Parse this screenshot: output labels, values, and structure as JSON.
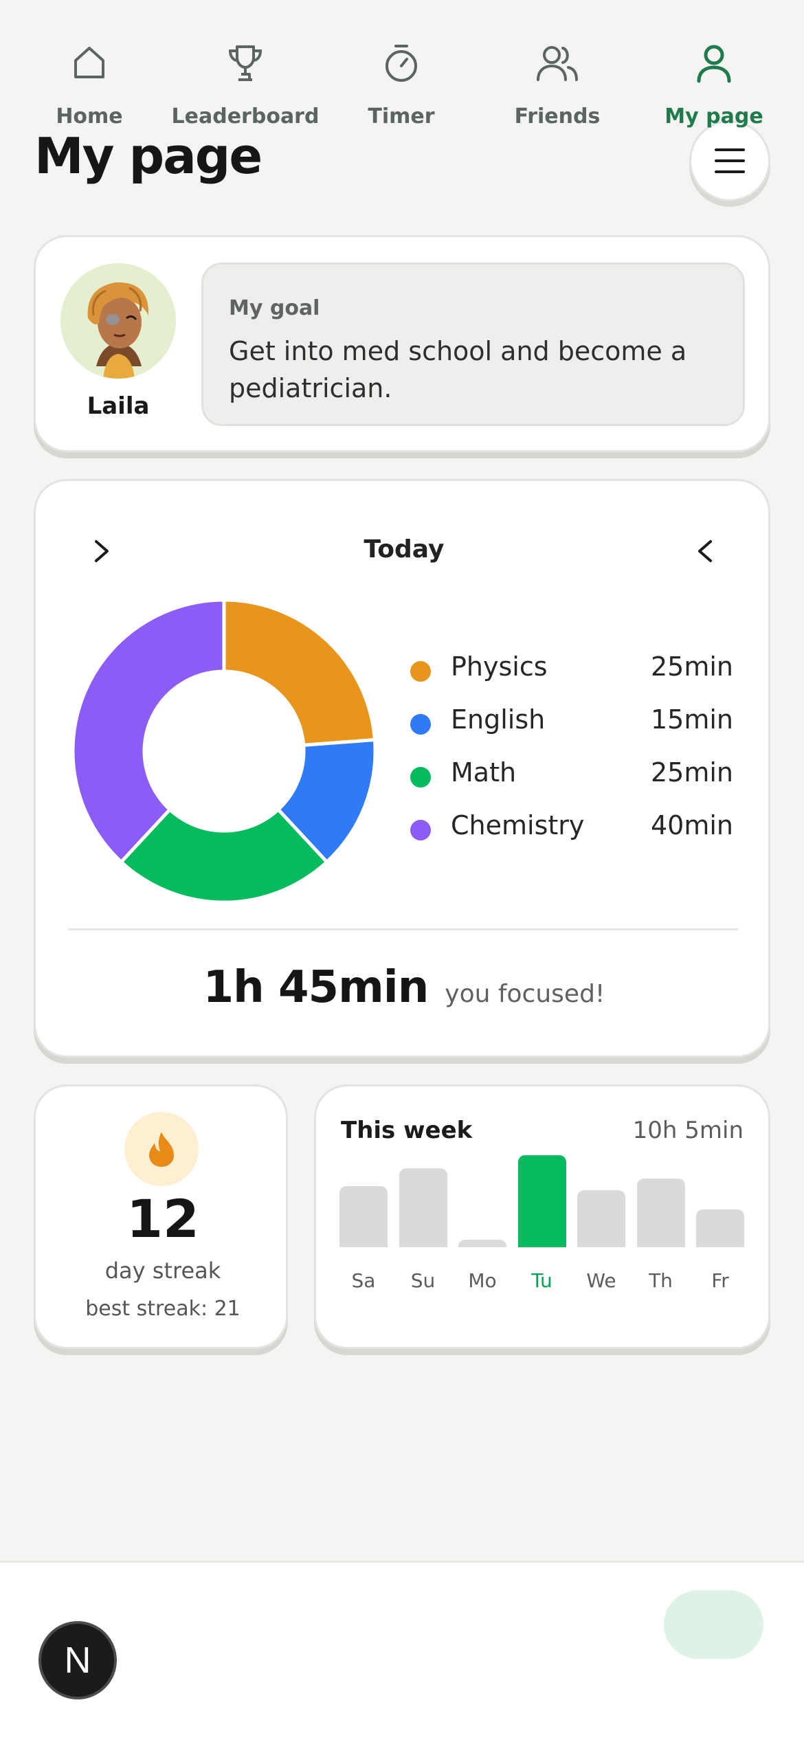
{
  "header": {
    "title": "My page",
    "menu_icon": "hamburger-icon"
  },
  "profile": {
    "name": "Laila",
    "goal_label": "My goal",
    "goal_text": "Get into med school and become a pediatrician."
  },
  "today": {
    "title": "Today",
    "total": "1h 45min",
    "caption": "you focused!",
    "subjects": [
      {
        "name": "Physics",
        "time": "25min",
        "minutes": 25,
        "color": "#e8951e"
      },
      {
        "name": "English",
        "time": "15min",
        "minutes": 15,
        "color": "#2f7bf5"
      },
      {
        "name": "Math",
        "time": "25min",
        "minutes": 25,
        "color": "#05bb5e"
      },
      {
        "name": "Chemistry",
        "time": "40min",
        "minutes": 40,
        "color": "#8b5cf6"
      }
    ]
  },
  "streak": {
    "count": "12",
    "label": "day streak",
    "best": "best streak: 21",
    "icon": "flame-icon"
  },
  "week": {
    "title": "This week",
    "total": "10h 5min",
    "days": [
      {
        "label": "Sa",
        "level": 0.42,
        "active": false
      },
      {
        "label": "Su",
        "level": 0.54,
        "active": false
      },
      {
        "label": "Mo",
        "level": 0.05,
        "active": false
      },
      {
        "label": "Tu",
        "level": 0.63,
        "active": true
      },
      {
        "label": "We",
        "level": 0.39,
        "active": false
      },
      {
        "label": "Th",
        "level": 0.47,
        "active": false
      },
      {
        "label": "Fr",
        "level": 0.26,
        "active": false
      }
    ]
  },
  "tabs": [
    {
      "label": "Home",
      "icon": "home-icon",
      "active": false
    },
    {
      "label": "Leaderboard",
      "icon": "trophy-icon",
      "active": false
    },
    {
      "label": "Timer",
      "icon": "stopwatch-icon",
      "active": false
    },
    {
      "label": "Friends",
      "icon": "friends-icon",
      "active": false
    },
    {
      "label": "My page",
      "icon": "user-icon",
      "active": true
    }
  ],
  "dev_badge": "N",
  "colors": {
    "accent": "#05bb5e",
    "accent_dark": "#1f7a4c",
    "background": "#f4f4f2"
  }
}
